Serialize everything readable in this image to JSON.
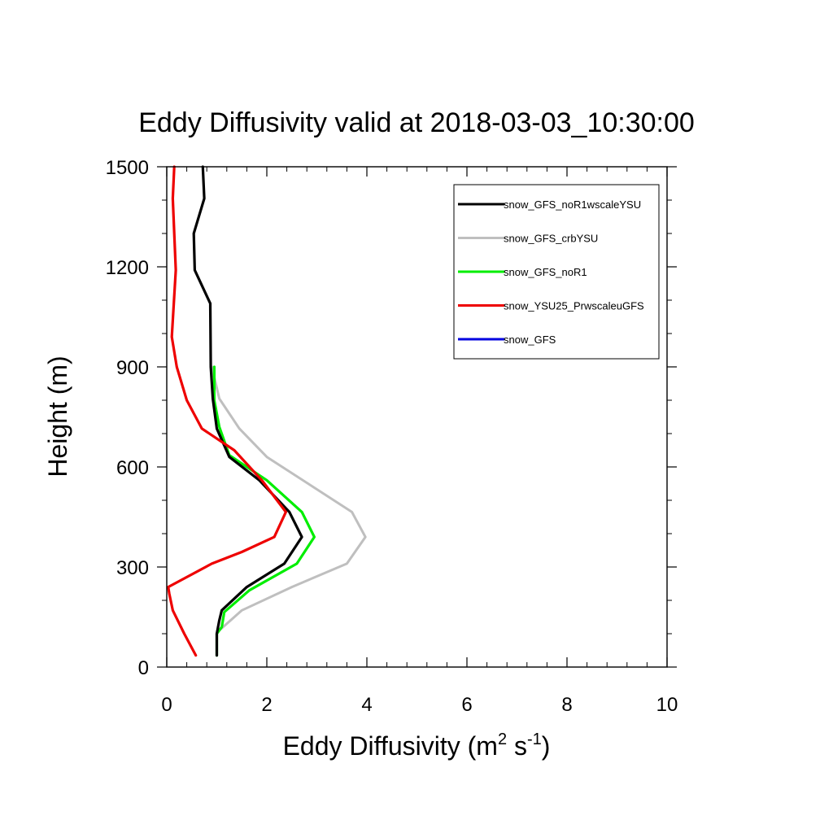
{
  "chart_data": {
    "type": "line",
    "title": "Eddy Diffusivity valid at 2018-03-03_10:30:00",
    "xlabel": {
      "base": "Eddy Diffusivity (m",
      "sup1": "2",
      "mid": " s",
      "sup2": "-1",
      "end": ")"
    },
    "ylabel": "Height (m)",
    "xlim": [
      0,
      10
    ],
    "ylim": [
      0,
      1500
    ],
    "x_ticks": [
      0,
      2,
      4,
      6,
      8,
      10
    ],
    "x_tick_labels": [
      "0",
      "2",
      "4",
      "6",
      "8",
      "10"
    ],
    "y_ticks": [
      0,
      300,
      600,
      900,
      1200,
      1500
    ],
    "y_tick_labels": [
      "0",
      "300",
      "600",
      "900",
      "1200",
      "1500"
    ],
    "grid": false,
    "legend_position": "top-right",
    "series": [
      {
        "name": "snow_GFS",
        "color": "#0000e0",
        "points": [
          [
            1.0,
            100
          ],
          [
            1.05,
            110
          ],
          [
            1.5,
            170
          ],
          [
            2.5,
            240
          ],
          [
            3.6,
            310
          ],
          [
            3.97,
            390
          ],
          [
            3.7,
            465
          ],
          [
            2.0,
            630
          ],
          [
            1.45,
            715
          ],
          [
            1.05,
            805
          ],
          [
            0.9,
            900
          ]
        ]
      },
      {
        "name": "snow_GFS_crbYSU",
        "color": "#bfbfbf",
        "points": [
          [
            1.0,
            100
          ],
          [
            1.05,
            110
          ],
          [
            1.5,
            170
          ],
          [
            2.5,
            240
          ],
          [
            3.6,
            310
          ],
          [
            3.97,
            390
          ],
          [
            3.7,
            465
          ],
          [
            2.0,
            630
          ],
          [
            1.45,
            715
          ],
          [
            1.05,
            805
          ],
          [
            0.9,
            900
          ]
        ]
      },
      {
        "name": "snow_GFS_noR1",
        "color": "#00ee00",
        "points": [
          [
            1.0,
            35
          ],
          [
            1.0,
            100
          ],
          [
            1.1,
            120
          ],
          [
            1.15,
            165
          ],
          [
            1.65,
            230
          ],
          [
            2.6,
            310
          ],
          [
            2.95,
            390
          ],
          [
            2.7,
            465
          ],
          [
            2.0,
            560
          ],
          [
            1.25,
            635
          ],
          [
            1.05,
            720
          ],
          [
            0.95,
            800
          ],
          [
            0.95,
            900
          ]
        ]
      },
      {
        "name": "snow_GFS_noR1wscaleYSU",
        "color": "#000000",
        "points": [
          [
            1.0,
            35
          ],
          [
            1.0,
            100
          ],
          [
            1.05,
            140
          ],
          [
            1.1,
            170
          ],
          [
            1.6,
            240
          ],
          [
            2.35,
            310
          ],
          [
            2.7,
            390
          ],
          [
            2.45,
            465
          ],
          [
            1.85,
            560
          ],
          [
            1.25,
            630
          ],
          [
            1.0,
            715
          ],
          [
            0.92,
            805
          ],
          [
            0.88,
            900
          ],
          [
            0.87,
            1090
          ],
          [
            0.56,
            1190
          ],
          [
            0.54,
            1300
          ],
          [
            0.75,
            1405
          ],
          [
            0.72,
            1500
          ]
        ]
      },
      {
        "name": "snow_YSU25_PrwscaleuGFS",
        "color": "#ee0000",
        "points": [
          [
            0.58,
            35
          ],
          [
            0.35,
            100
          ],
          [
            0.12,
            170
          ],
          [
            0.05,
            220
          ],
          [
            0.03,
            240
          ],
          [
            0.9,
            310
          ],
          [
            1.5,
            345
          ],
          [
            2.15,
            390
          ],
          [
            2.38,
            465
          ],
          [
            1.9,
            560
          ],
          [
            1.35,
            650
          ],
          [
            0.7,
            715
          ],
          [
            0.4,
            800
          ],
          [
            0.2,
            900
          ],
          [
            0.1,
            990
          ],
          [
            0.18,
            1190
          ],
          [
            0.12,
            1405
          ],
          [
            0.15,
            1500
          ]
        ]
      }
    ],
    "legend_order": [
      "snow_GFS_noR1wscaleYSU",
      "snow_GFS_crbYSU",
      "snow_GFS_noR1",
      "snow_YSU25_PrwscaleuGFS",
      "snow_GFS"
    ]
  }
}
